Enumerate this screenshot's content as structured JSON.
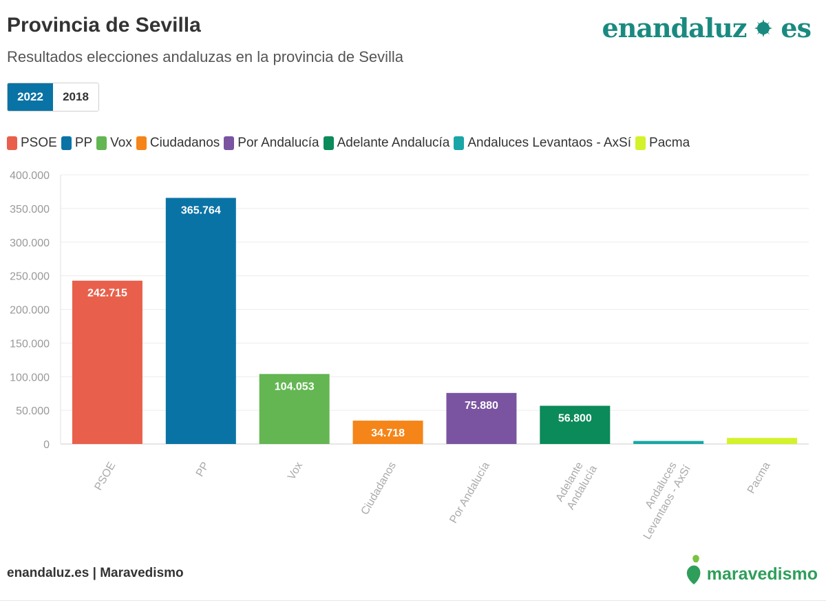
{
  "header": {
    "title": "Provincia de Sevilla",
    "subtitle": "Resultados elecciones andaluzas en la provincia de Sevilla",
    "brand_left": "enandaluz",
    "brand_right": "es"
  },
  "tabs": [
    {
      "label": "2022",
      "active": true
    },
    {
      "label": "2018",
      "active": false
    }
  ],
  "footer": {
    "source": "enandaluz.es | Maravedismo",
    "logo_text": "maravedismo"
  },
  "colors": {
    "accent": "#0a73a5",
    "brand": "#1a8a80",
    "logo": "#2e9e5a"
  },
  "chart_data": {
    "type": "bar",
    "title": "Provincia de Sevilla",
    "ylim": [
      0,
      400000
    ],
    "yticks": [
      0,
      50000,
      100000,
      150000,
      200000,
      250000,
      300000,
      350000,
      400000
    ],
    "ytick_labels": [
      "0",
      "50.000",
      "100.000",
      "150.000",
      "200.000",
      "250.000",
      "300.000",
      "350.000",
      "400.000"
    ],
    "grid": true,
    "legend_position": "top-left",
    "categories": [
      "PSOE",
      "PP",
      "Vox",
      "Ciudadanos",
      "Por Andalucía",
      "Adelante Andalucía",
      "Andaluces Levantaos - AxSí",
      "Pacma"
    ],
    "axis_labels": [
      [
        "PSOE"
      ],
      [
        "PP"
      ],
      [
        "Vox"
      ],
      [
        "Ciudadanos"
      ],
      [
        "Por Andalucía"
      ],
      [
        "Adelante",
        "Andalucía"
      ],
      [
        "Andaluces",
        "Levantaos - AxSí"
      ],
      [
        "Pacma"
      ]
    ],
    "values": [
      242715,
      365764,
      104053,
      34718,
      75880,
      56800,
      4500,
      9000
    ],
    "data_labels": [
      "242.715",
      "365.764",
      "104.053",
      "34.718",
      "75.880",
      "56.800",
      "",
      ""
    ],
    "colors": [
      "#e8604c",
      "#0a73a5",
      "#63b652",
      "#f58518",
      "#7a54a0",
      "#0b8a5a",
      "#1aa6a6",
      "#d4f22a"
    ]
  }
}
